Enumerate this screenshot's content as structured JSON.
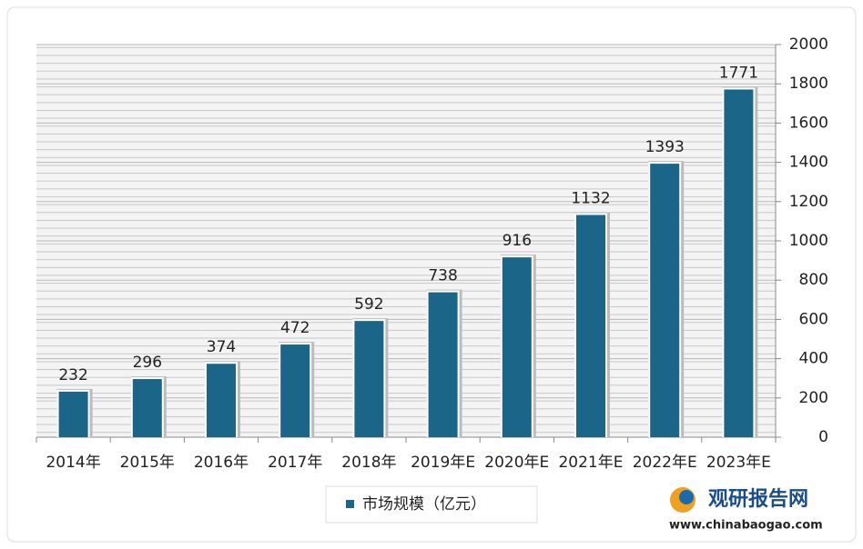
{
  "chart_data": {
    "type": "bar",
    "categories": [
      "2014年",
      "2015年",
      "2016年",
      "2017年",
      "2018年",
      "2019年E",
      "2020年E",
      "2021年E",
      "2022年E",
      "2023年E"
    ],
    "series": [
      {
        "name": "市场规模（亿元）",
        "color": "#1b6688",
        "values": [
          232,
          296,
          374,
          472,
          592,
          738,
          916,
          1132,
          1393,
          1771
        ]
      }
    ],
    "ylim": [
      0,
      2000
    ],
    "yticks": [
      0,
      200,
      400,
      600,
      800,
      1000,
      1200,
      1400,
      1600,
      1800,
      2000
    ],
    "grid": true,
    "y_axis_side": "right",
    "legend": "bottom"
  },
  "watermark": {
    "name": "观研报告网",
    "url": "www.chinabaogao.com"
  }
}
